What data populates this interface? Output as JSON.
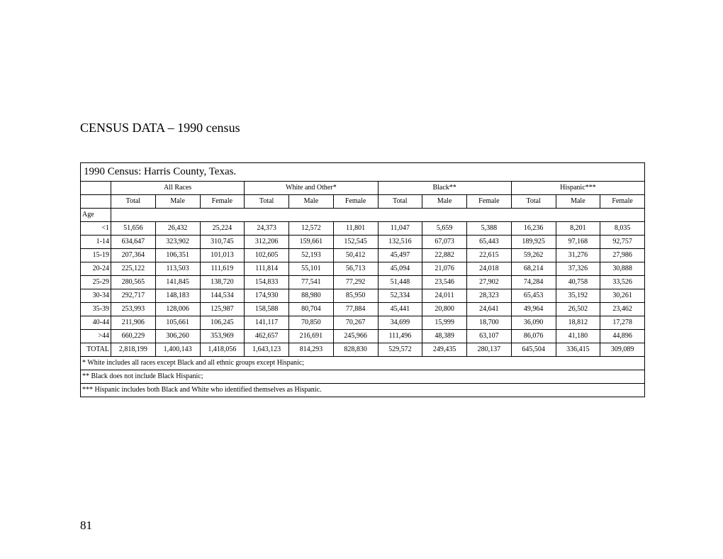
{
  "page_title": "CENSUS DATA – 1990 census",
  "table_subtitle": "1990 Census:  Harris County, Texas.",
  "page_number": "81",
  "groups": [
    "All Races",
    "White and Other*",
    "Black**",
    "Hispanic***"
  ],
  "sub_columns": [
    "Total",
    "Male",
    "Female"
  ],
  "age_header": "Age",
  "total_label": "TOTAL",
  "row_labels": [
    "<1",
    "1-14",
    "15-19",
    "20-24",
    "25-29",
    "30-34",
    "35-39",
    "40-44",
    ">44"
  ],
  "rows": [
    [
      "51,656",
      "26,432",
      "25,224",
      "24,373",
      "12,572",
      "11,801",
      "11,047",
      "5,659",
      "5,388",
      "16,236",
      "8,201",
      "8,035"
    ],
    [
      "634,647",
      "323,902",
      "310,745",
      "312,206",
      "159,661",
      "152,545",
      "132,516",
      "67,073",
      "65,443",
      "189,925",
      "97,168",
      "92,757"
    ],
    [
      "207,364",
      "106,351",
      "101,013",
      "102,605",
      "52,193",
      "50,412",
      "45,497",
      "22,882",
      "22,615",
      "59,262",
      "31,276",
      "27,986"
    ],
    [
      "225,122",
      "113,503",
      "111,619",
      "111,814",
      "55,101",
      "56,713",
      "45,094",
      "21,076",
      "24,018",
      "68,214",
      "37,326",
      "30,888"
    ],
    [
      "280,565",
      "141,845",
      "138,720",
      "154,833",
      "77,541",
      "77,292",
      "51,448",
      "23,546",
      "27,902",
      "74,284",
      "40,758",
      "33,526"
    ],
    [
      "292,717",
      "148,183",
      "144,534",
      "174,930",
      "88,980",
      "85,950",
      "52,334",
      "24,011",
      "28,323",
      "65,453",
      "35,192",
      "30,261"
    ],
    [
      "253,993",
      "128,006",
      "125,987",
      "158,588",
      "80,704",
      "77,884",
      "45,441",
      "20,800",
      "24,641",
      "49,964",
      "26,502",
      "23,462"
    ],
    [
      "211,906",
      "105,661",
      "106,245",
      "141,117",
      "70,850",
      "70,267",
      "34,699",
      "15,999",
      "18,700",
      "36,090",
      "18,812",
      "17,278"
    ],
    [
      "660,229",
      "306,260",
      "353,969",
      "462,657",
      "216,691",
      "245,966",
      "111,496",
      "48,389",
      "63,107",
      "86,076",
      "41,180",
      "44,896"
    ]
  ],
  "totals": [
    "2,818,199",
    "1,400,143",
    "1,418,056",
    "1,643,123",
    "814,293",
    "828,830",
    "529,572",
    "249,435",
    "280,137",
    "645,504",
    "336,415",
    "309,089"
  ],
  "footnotes": [
    "*  White includes all races except Black and all ethnic groups except Hispanic;",
    "** Black does not include Black Hispanic;",
    "*** Hispanic includes both Black and White who identified themselves as Hispanic."
  ],
  "styling": {
    "background_color": "#ffffff",
    "text_color": "#000000",
    "border_color": "#000000",
    "page_title_fontsize": 18,
    "subtitle_fontsize": 15,
    "table_fontsize": 10,
    "page_number_fontsize": 17,
    "font_family": "Times New Roman"
  }
}
